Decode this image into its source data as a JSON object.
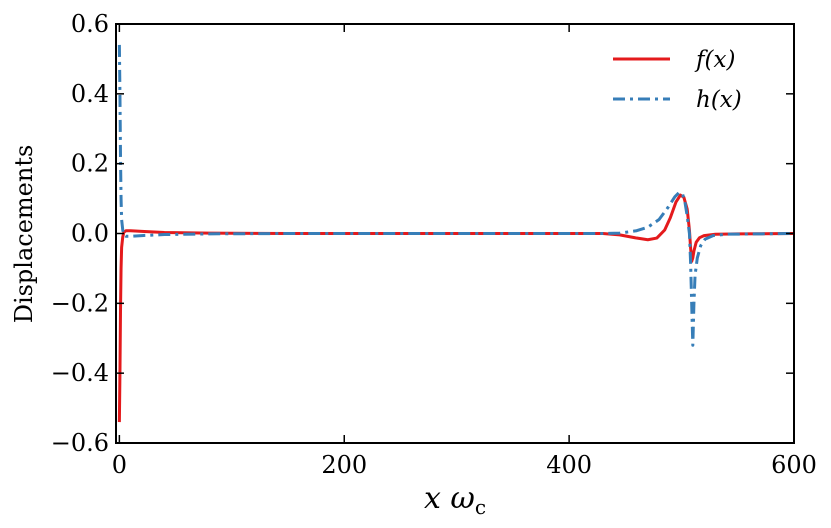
{
  "chart_data": {
    "type": "line",
    "title": "",
    "ylabel": "Displacements",
    "xlabel": {
      "main": "x ω",
      "sub": "c"
    },
    "xlim": [
      -3,
      600
    ],
    "ylim": [
      -0.6,
      0.6
    ],
    "xticks": [
      0,
      200,
      400,
      600
    ],
    "xtick_labels": [
      "0",
      "200",
      "400",
      "600"
    ],
    "yticks": [
      -0.6,
      -0.4,
      -0.2,
      0.0,
      0.2,
      0.4,
      0.6
    ],
    "ytick_labels": [
      "−0.6",
      "−0.4",
      "−0.2",
      "0.0",
      "0.2",
      "0.4",
      "0.6"
    ],
    "grid": false,
    "legend_position": "top-right",
    "series": [
      {
        "name": "f(x)",
        "color": "#e41a1c",
        "style": "solid",
        "points": [
          [
            0,
            -0.54
          ],
          [
            0.5,
            -0.4
          ],
          [
            1,
            -0.22
          ],
          [
            1.5,
            -0.1
          ],
          [
            2,
            -0.04
          ],
          [
            3,
            -0.01
          ],
          [
            4,
            0.004
          ],
          [
            6,
            0.008
          ],
          [
            10,
            0.008
          ],
          [
            20,
            0.006
          ],
          [
            40,
            0.003
          ],
          [
            80,
            0.001
          ],
          [
            150,
            0.0
          ],
          [
            300,
            0.0
          ],
          [
            400,
            0.0
          ],
          [
            430,
            0.0
          ],
          [
            445,
            -0.004
          ],
          [
            460,
            -0.013
          ],
          [
            470,
            -0.018
          ],
          [
            478,
            -0.013
          ],
          [
            485,
            0.01
          ],
          [
            490,
            0.045
          ],
          [
            495,
            0.09
          ],
          [
            499,
            0.11
          ],
          [
            502,
            0.104
          ],
          [
            505,
            0.07
          ],
          [
            507,
            0.01
          ],
          [
            508,
            -0.04
          ],
          [
            509,
            -0.08
          ],
          [
            510,
            -0.07
          ],
          [
            511,
            -0.05
          ],
          [
            513,
            -0.025
          ],
          [
            516,
            -0.012
          ],
          [
            520,
            -0.006
          ],
          [
            530,
            -0.002
          ],
          [
            550,
            -0.001
          ],
          [
            600,
            0.0
          ]
        ]
      },
      {
        "name": "h(x)",
        "color": "#377eb8",
        "style": "dashdot",
        "points": [
          [
            0,
            0.54
          ],
          [
            0.5,
            0.4
          ],
          [
            1,
            0.22
          ],
          [
            1.5,
            0.1
          ],
          [
            2,
            0.04
          ],
          [
            3,
            0.01
          ],
          [
            4,
            -0.004
          ],
          [
            6,
            -0.008
          ],
          [
            10,
            -0.008
          ],
          [
            20,
            -0.006
          ],
          [
            40,
            -0.003
          ],
          [
            80,
            -0.001
          ],
          [
            150,
            0.0
          ],
          [
            300,
            0.0
          ],
          [
            430,
            0.0
          ],
          [
            445,
            0.001
          ],
          [
            460,
            0.008
          ],
          [
            470,
            0.018
          ],
          [
            480,
            0.04
          ],
          [
            488,
            0.075
          ],
          [
            494,
            0.105
          ],
          [
            498,
            0.118
          ],
          [
            501,
            0.112
          ],
          [
            503,
            0.09
          ],
          [
            505,
            0.05
          ],
          [
            507,
            0.0
          ],
          [
            508,
            -0.08
          ],
          [
            509,
            -0.2
          ],
          [
            510,
            -0.32
          ],
          [
            511,
            -0.2
          ],
          [
            512,
            -0.12
          ],
          [
            514,
            -0.07
          ],
          [
            517,
            -0.035
          ],
          [
            521,
            -0.016
          ],
          [
            528,
            -0.006
          ],
          [
            540,
            -0.002
          ],
          [
            600,
            0.0
          ]
        ]
      }
    ]
  }
}
